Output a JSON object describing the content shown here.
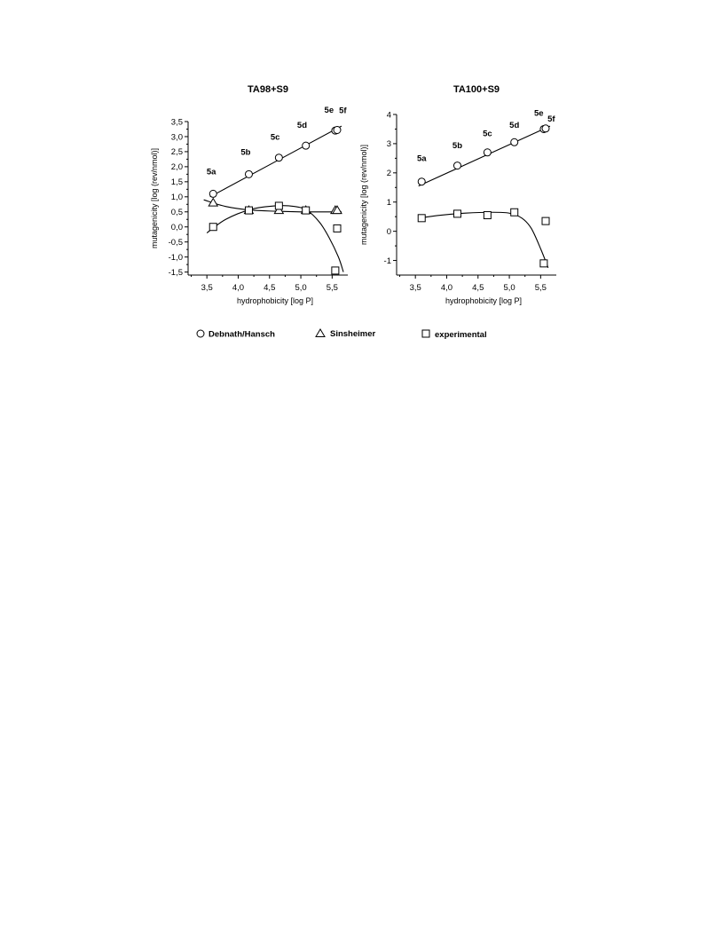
{
  "chart_data": [
    {
      "type": "scatter",
      "title": "TA98+S9",
      "xlabel": "hydrophobicity [log P]",
      "ylabel": "mutagenicity [log (rev/nmol)]",
      "xlim": [
        3.2,
        5.75
      ],
      "ylim": [
        -1.6,
        3.5
      ],
      "x_ticks": [
        "3,5",
        "4,0",
        "4,5",
        "5,0",
        "5,5"
      ],
      "x_tick_values": [
        3.5,
        4.0,
        4.5,
        5.0,
        5.5
      ],
      "y_ticks": [
        "3,5",
        "3,0",
        "2,5",
        "2,0",
        "1,5",
        "1,0",
        "0,5",
        "0,0",
        "-0,5",
        "-1,0",
        "-1,5"
      ],
      "y_tick_values": [
        3.5,
        3.0,
        2.5,
        2.0,
        1.5,
        1.0,
        0.5,
        0.0,
        -0.5,
        -1.0,
        -1.5
      ],
      "series": [
        {
          "name": "Debnath/Hansch",
          "marker": "circle",
          "x": [
            3.6,
            4.17,
            4.65,
            5.08,
            5.55,
            5.58
          ],
          "y": [
            1.1,
            1.75,
            2.3,
            2.7,
            3.2,
            3.22
          ]
        },
        {
          "name": "Sinsheimer",
          "marker": "triangle",
          "x": [
            3.6,
            4.17,
            4.65,
            5.08,
            5.55,
            5.58
          ],
          "y": [
            0.8,
            0.55,
            0.55,
            0.55,
            0.55,
            0.55
          ]
        },
        {
          "name": "experimental",
          "marker": "square",
          "x": [
            3.6,
            4.17,
            4.65,
            5.08,
            5.55,
            5.58
          ],
          "y": [
            0.0,
            0.55,
            0.7,
            0.55,
            -1.45,
            -0.05
          ]
        }
      ],
      "fits": [
        {
          "series": "Debnath/Hansch",
          "x": [
            3.55,
            5.65
          ],
          "y": [
            1.0,
            3.35
          ]
        },
        {
          "series": "Sinsheimer",
          "x": [
            3.45,
            3.8,
            4.2,
            4.6,
            5.0,
            5.4,
            5.65
          ],
          "y": [
            0.9,
            0.68,
            0.56,
            0.52,
            0.5,
            0.5,
            0.5
          ]
        },
        {
          "series": "experimental",
          "x": [
            3.5,
            3.8,
            4.2,
            4.6,
            4.9,
            5.1,
            5.3,
            5.45,
            5.6,
            5.68
          ],
          "y": [
            -0.2,
            0.25,
            0.58,
            0.7,
            0.68,
            0.55,
            0.15,
            -0.35,
            -1.0,
            -1.5
          ]
        }
      ],
      "point_labels": [
        {
          "text": "5a",
          "x": 3.57,
          "y": 1.75
        },
        {
          "text": "5b",
          "x": 4.12,
          "y": 2.4
        },
        {
          "text": "5c",
          "x": 4.59,
          "y": 2.9
        },
        {
          "text": "5d",
          "x": 5.02,
          "y": 3.3
        },
        {
          "text": "5e",
          "x": 5.45,
          "y": 3.8
        },
        {
          "text": "5f",
          "x": 5.67,
          "y": 3.78
        }
      ]
    },
    {
      "type": "scatter",
      "title": "TA100+S9",
      "xlabel": "hydrophobicity [log P]",
      "ylabel": "mutagenicity [log (rev/nmol)]",
      "xlim": [
        3.2,
        5.75
      ],
      "ylim": [
        -1.5,
        4
      ],
      "x_ticks": [
        "3,5",
        "4,0",
        "4,5",
        "5,0",
        "5,5"
      ],
      "x_tick_values": [
        3.5,
        4.0,
        4.5,
        5.0,
        5.5
      ],
      "y_ticks": [
        "4",
        "3",
        "2",
        "1",
        "0",
        "-1"
      ],
      "y_tick_values": [
        4,
        3,
        2,
        1,
        0,
        -1
      ],
      "series": [
        {
          "name": "Debnath/Hansch",
          "marker": "circle",
          "x": [
            3.6,
            4.17,
            4.65,
            5.08,
            5.55,
            5.58
          ],
          "y": [
            1.7,
            2.25,
            2.7,
            3.05,
            3.5,
            3.52
          ]
        },
        {
          "name": "experimental",
          "marker": "square",
          "x": [
            3.6,
            4.17,
            4.65,
            5.08,
            5.55,
            5.58
          ],
          "y": [
            0.45,
            0.6,
            0.55,
            0.65,
            -1.1,
            0.35
          ]
        }
      ],
      "fits": [
        {
          "series": "Debnath/Hansch",
          "x": [
            3.55,
            5.65
          ],
          "y": [
            1.55,
            3.6
          ]
        },
        {
          "series": "experimental",
          "x": [
            3.55,
            3.9,
            4.3,
            4.7,
            5.0,
            5.2,
            5.35,
            5.5,
            5.62
          ],
          "y": [
            0.45,
            0.55,
            0.62,
            0.65,
            0.62,
            0.45,
            0.1,
            -0.6,
            -1.25
          ]
        }
      ],
      "point_labels": [
        {
          "text": "5a",
          "x": 3.6,
          "y": 2.4
        },
        {
          "text": "5b",
          "x": 4.17,
          "y": 2.85
        },
        {
          "text": "5c",
          "x": 4.65,
          "y": 3.25
        },
        {
          "text": "5d",
          "x": 5.08,
          "y": 3.55
        },
        {
          "text": "5e",
          "x": 5.47,
          "y": 3.95
        },
        {
          "text": "5f",
          "x": 5.67,
          "y": 3.75
        }
      ]
    }
  ],
  "legend": [
    {
      "label": "Debnath/Hansch",
      "marker": "circle"
    },
    {
      "label": "Sinsheimer",
      "marker": "triangle"
    },
    {
      "label": "experimental",
      "marker": "square"
    }
  ]
}
